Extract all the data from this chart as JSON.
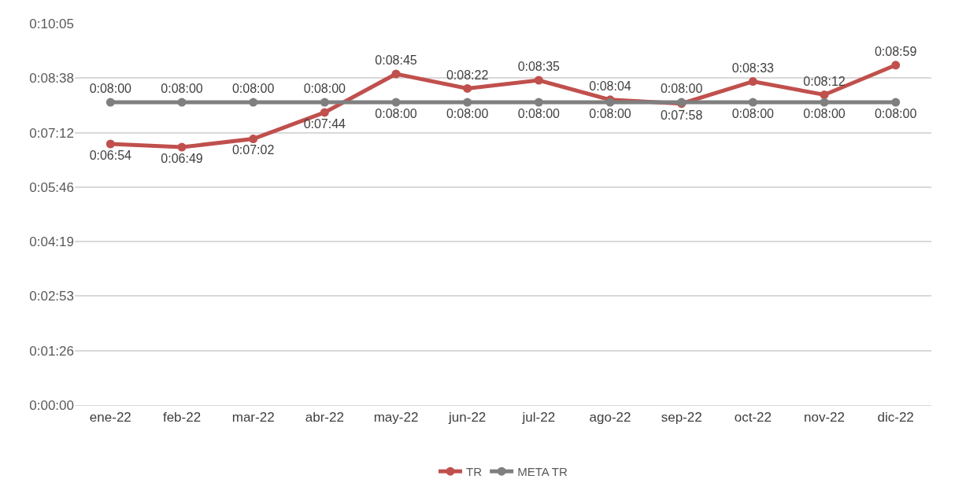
{
  "chart_data": {
    "type": "line",
    "categories": [
      "ene-22",
      "feb-22",
      "mar-22",
      "abr-22",
      "may-22",
      "jun-22",
      "jul-22",
      "ago-22",
      "sep-22",
      "oct-22",
      "nov-22",
      "dic-22"
    ],
    "series": [
      {
        "name": "TR",
        "color": "#c0504d",
        "values": [
          414,
          409,
          422,
          464,
          525,
          502,
          515,
          484,
          478,
          513,
          492,
          539
        ],
        "value_labels": [
          "0:06:54",
          "0:06:49",
          "0:07:02",
          "0:07:44",
          "0:08:45",
          "0:08:22",
          "0:08:35",
          "0:08:04",
          "0:07:58",
          "0:08:33",
          "0:08:12",
          "0:08:59"
        ]
      },
      {
        "name": "META TR",
        "color": "#7f7f7f",
        "values": [
          480,
          480,
          480,
          480,
          480,
          480,
          480,
          480,
          480,
          480,
          480,
          480
        ],
        "value_labels": [
          "0:08:00",
          "0:08:00",
          "0:08:00",
          "0:08:00",
          "0:08:00",
          "0:08:00",
          "0:08:00",
          "0:08:00",
          "0:08:00",
          "0:08:00",
          "0:08:00",
          "0:08:00"
        ]
      }
    ],
    "ylim": [
      0,
      604.8
    ],
    "yticks": [
      {
        "value": 0,
        "label": "0:00:00"
      },
      {
        "value": 86.4,
        "label": "0:01:26"
      },
      {
        "value": 172.8,
        "label": "0:02:53"
      },
      {
        "value": 259.2,
        "label": "0:04:19"
      },
      {
        "value": 345.6,
        "label": "0:05:46"
      },
      {
        "value": 432,
        "label": "0:07:12"
      },
      {
        "value": 518.4,
        "label": "0:08:38"
      },
      {
        "value": 604.8,
        "label": "0:10:05"
      }
    ],
    "grid": "y",
    "legend": "bottom",
    "marker": "circle",
    "line_style": "solid"
  }
}
